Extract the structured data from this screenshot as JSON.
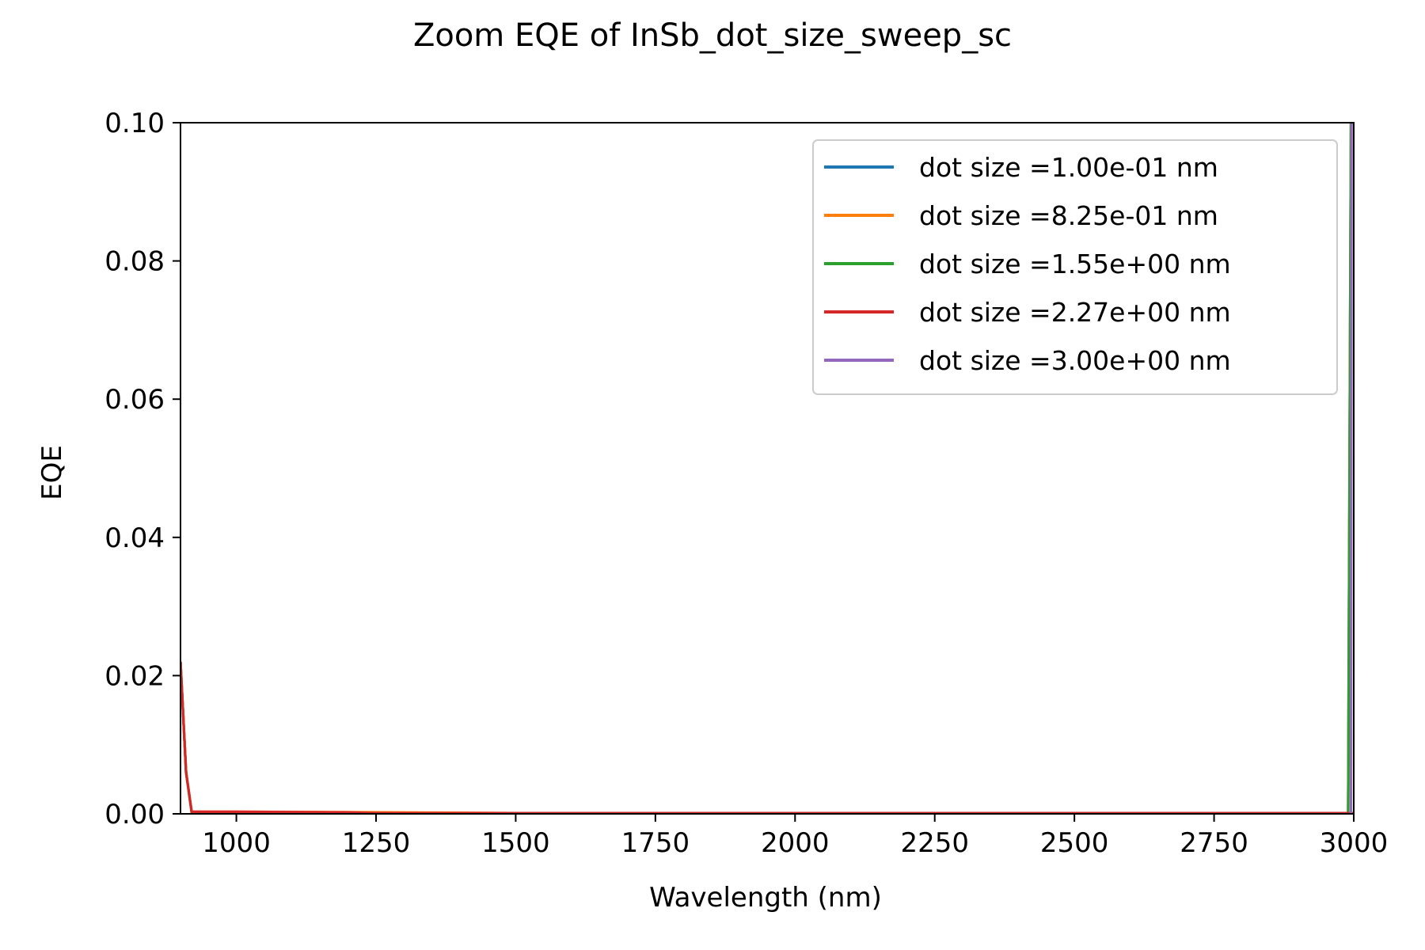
{
  "chart_data": {
    "type": "line",
    "title": "Zoom EQE of InSb_dot_size_sweep_sc",
    "xlabel": "Wavelength (nm)",
    "ylabel": "EQE",
    "xlim": [
      900,
      3000
    ],
    "ylim": [
      0,
      0.1
    ],
    "xticks": [
      1000,
      1250,
      1500,
      1750,
      2000,
      2250,
      2500,
      2750,
      3000
    ],
    "xtick_labels": [
      "1000",
      "1250",
      "1500",
      "1750",
      "2000",
      "2250",
      "2500",
      "2750",
      "3000"
    ],
    "yticks": [
      0,
      0.02,
      0.04,
      0.06,
      0.08,
      0.1
    ],
    "ytick_labels": [
      "0.00",
      "0.02",
      "0.04",
      "0.06",
      "0.08",
      "0.10"
    ],
    "grid": false,
    "legend_position": "upper right",
    "series": [
      {
        "name": "dot size =1.00e-01 nm",
        "color": "#1f77b4",
        "x": [
          900,
          910,
          920,
          1000,
          1200,
          1500,
          2000,
          2500,
          2990,
          2995,
          3000
        ],
        "y": [
          0.022,
          0.006,
          0.0002,
          0.0002,
          0.00015,
          0.0001,
          0.0001,
          0.0001,
          0.0001,
          0.1,
          0.1
        ]
      },
      {
        "name": "dot size =8.25e-01 nm",
        "color": "#ff7f0e",
        "x": [
          900,
          910,
          920,
          1000,
          1200,
          1500,
          2000,
          2500,
          2990,
          2995,
          3000
        ],
        "y": [
          0.022,
          0.006,
          0.0003,
          0.0003,
          0.00025,
          0.0001,
          0.0001,
          0.0001,
          0.0001,
          0.1,
          0.1
        ]
      },
      {
        "name": "dot size =1.55e+00 nm",
        "color": "#2ca02c",
        "x": [
          900,
          910,
          920,
          1000,
          1200,
          1500,
          2000,
          2500,
          2990,
          2995,
          3000
        ],
        "y": [
          0.022,
          0.006,
          0.0002,
          0.0002,
          0.0001,
          0.0001,
          0.0001,
          0.0001,
          0.0001,
          0.1,
          0.1
        ]
      },
      {
        "name": "dot size =2.27e+00 nm",
        "color": "#d62728",
        "x": [
          900,
          910,
          920,
          1000,
          1200,
          1250,
          1500,
          2000,
          2500,
          3000
        ],
        "y": [
          0.022,
          0.006,
          0.0003,
          0.0003,
          0.0002,
          0.0001,
          0.0001,
          0.0001,
          0.0001,
          0.0001
        ]
      },
      {
        "name": "dot size =3.00e+00 nm",
        "color": "#9467bd",
        "x": [
          2995,
          2996,
          3000
        ],
        "y": [
          0.0,
          0.1,
          0.1
        ]
      }
    ]
  }
}
